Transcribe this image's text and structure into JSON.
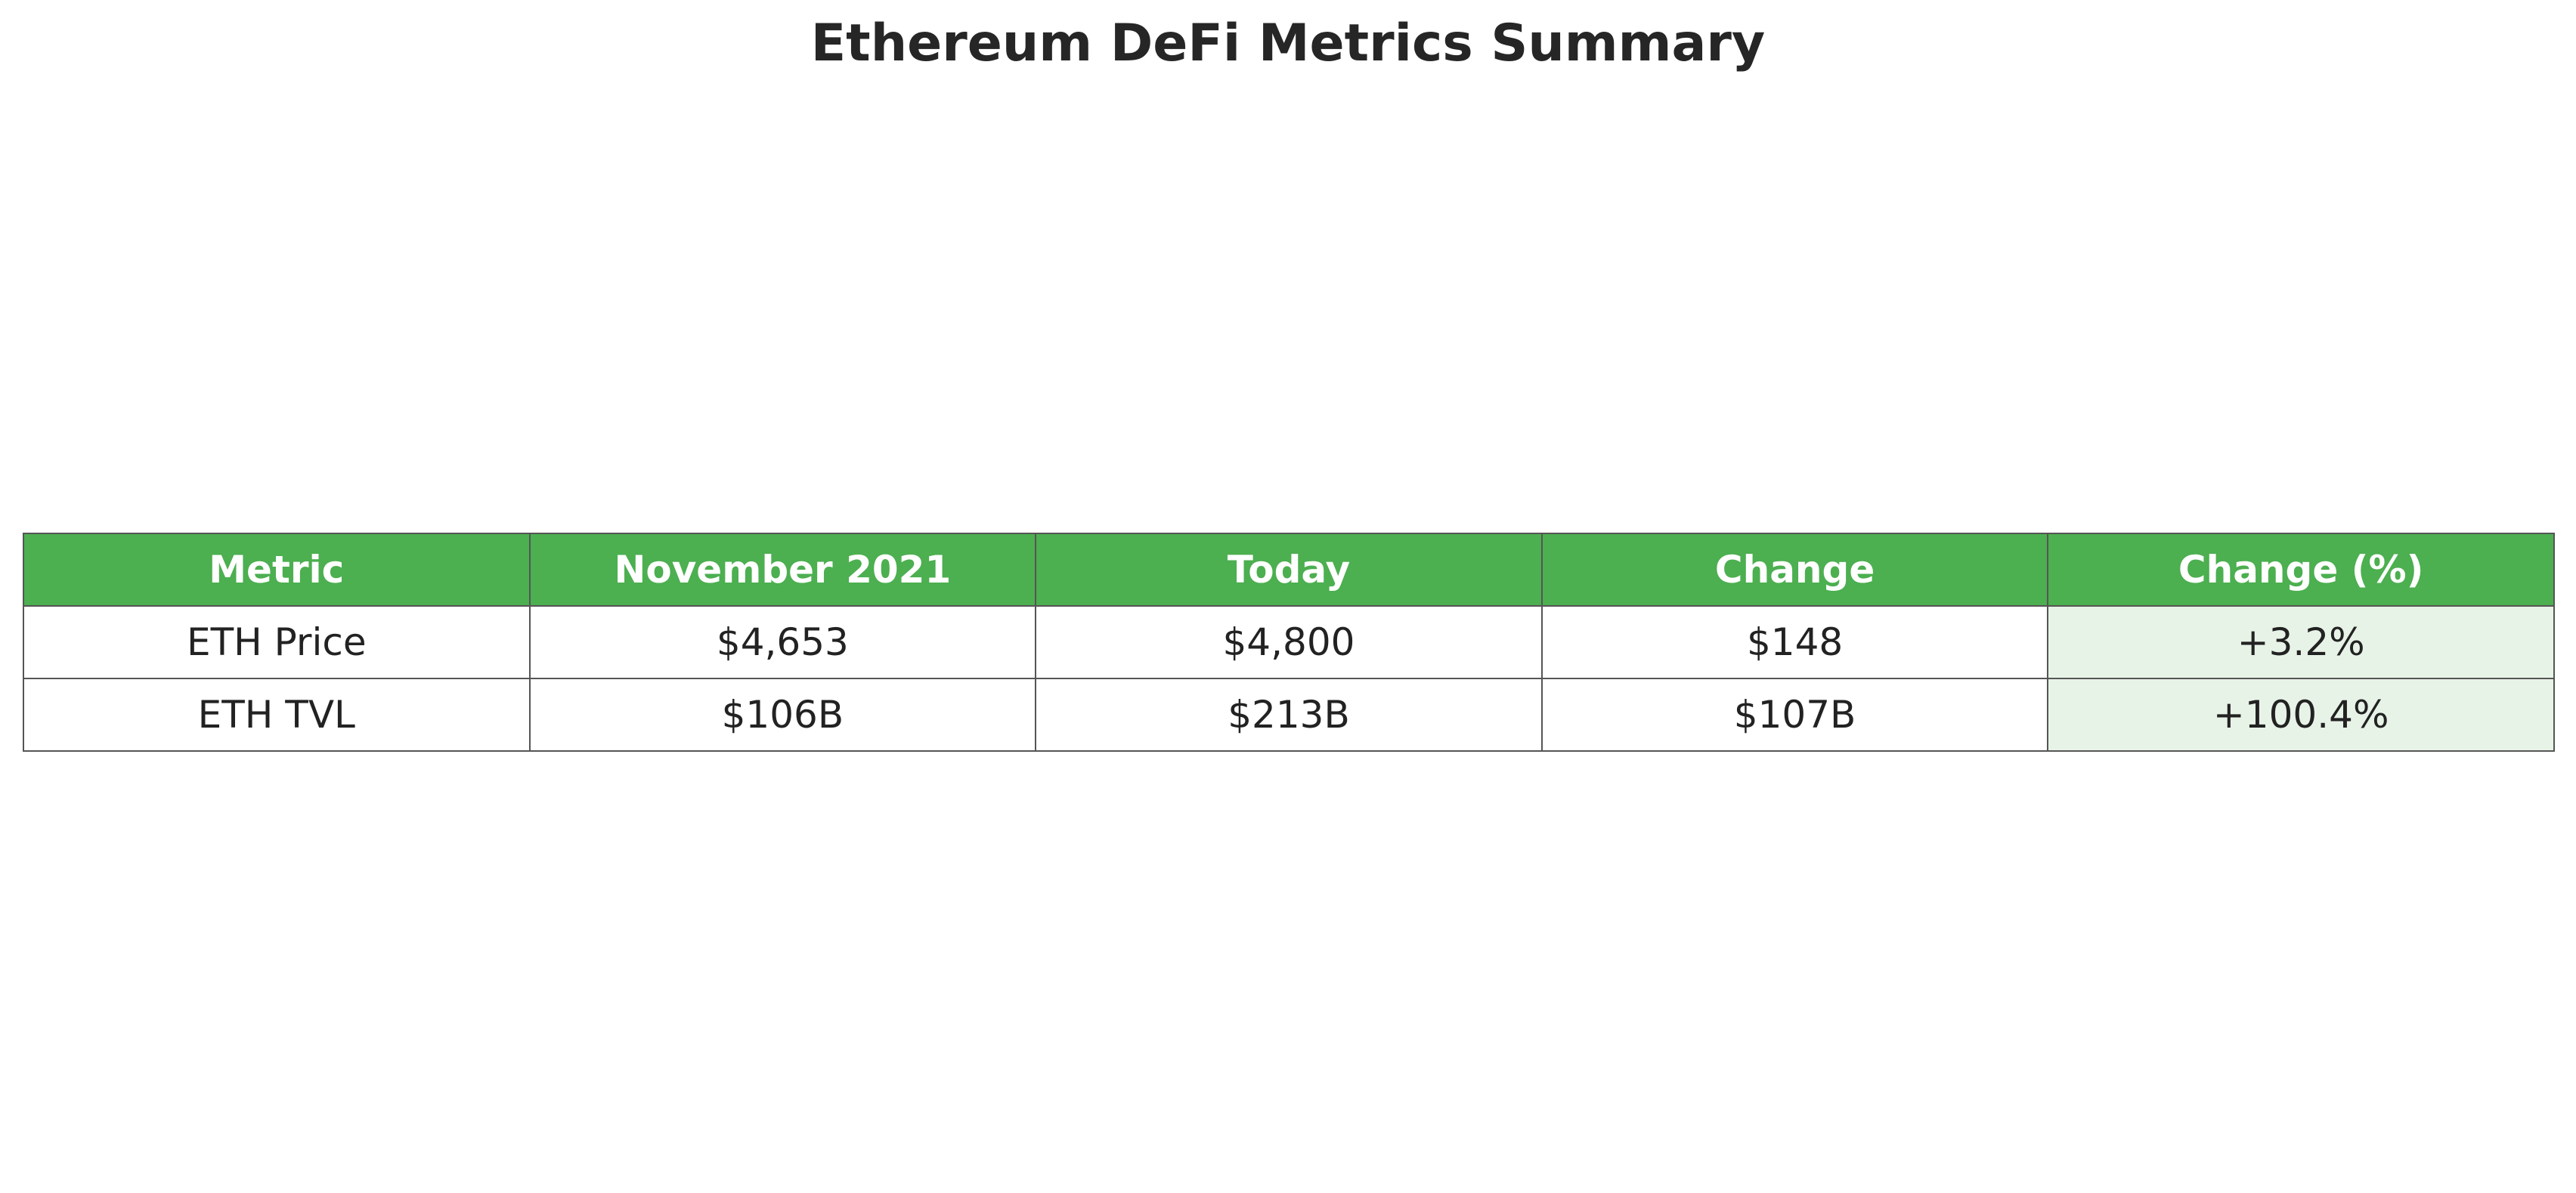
{
  "chart_data": {
    "type": "table",
    "title": "Ethereum DeFi Metrics Summary",
    "columns": [
      "Metric",
      "November 2021",
      "Today",
      "Change",
      "Change (%)"
    ],
    "rows": [
      [
        "ETH Price",
        "$4,653",
        "$4,800",
        "$148",
        "+3.2%"
      ],
      [
        "ETH TVL",
        "$106B",
        "$213B",
        "$107B",
        "+100.4%"
      ]
    ],
    "colors": {
      "header_background": "#4caf50",
      "header_text": "#ffffff",
      "change_pct_background": "#e8f3e8",
      "border": "#555555"
    }
  }
}
